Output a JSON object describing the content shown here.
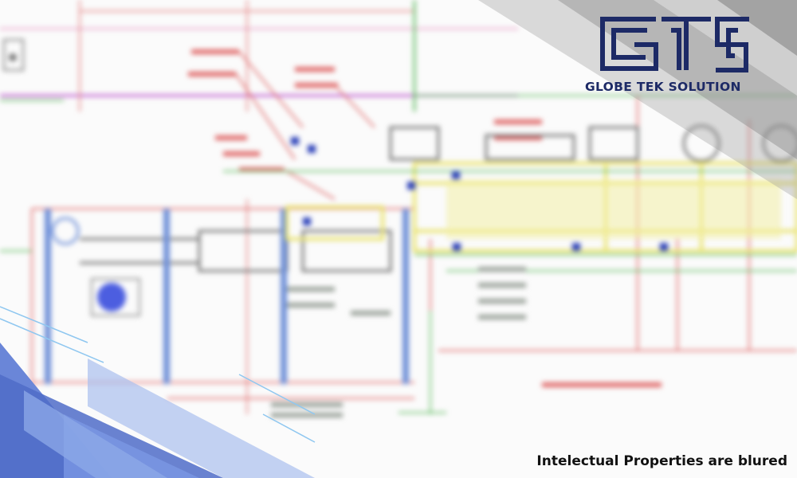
{
  "brand": {
    "monogram": "GTS",
    "name": "GLOBE TEK SOLUTION",
    "primary_color": "#1d2a66"
  },
  "caption": {
    "text": "Intelectual Properties are blured"
  },
  "background": {
    "content": "blurred-engineering-drawing",
    "accent_color": "#5b73c9"
  }
}
